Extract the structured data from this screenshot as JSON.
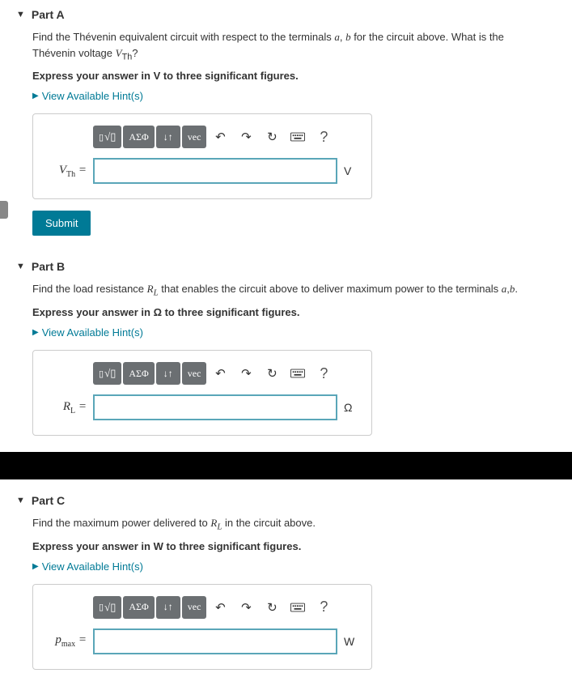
{
  "parts": [
    {
      "title": "Part A",
      "question_html": "Find the Thévenin equivalent circuit with respect to the terminals <span class='ital'>a</span>, <span class='ital'>b</span> for the circuit above. What is the Thévenin voltage <span class='ital'>V</span><sub>Th</sub>?",
      "instruction": "Express your answer in V to three significant figures.",
      "hints_label": "View Available Hint(s)",
      "var_html": "<span class='ital'>V</span><sub>Th</sub> =",
      "unit": "V",
      "submit_label": "Submit",
      "show_submit": true
    },
    {
      "title": "Part B",
      "question_html": "Find the load resistance <span class='ital'>R<sub>L</sub></span> that enables the circuit above to deliver maximum power to the terminals <span class='ital'>a</span>,<span class='ital'>b</span>.",
      "instruction": "Express your answer in Ω to three significant figures.",
      "hints_label": "View Available Hint(s)",
      "var_html": "<span class='ital'>R<sub>L</sub></span> =",
      "unit": "Ω",
      "show_submit": false
    },
    {
      "title": "Part C",
      "question_html": "Find the maximum power delivered to <span class='ital'>R<sub>L</sub></span> in the circuit above.",
      "instruction": "Express your answer in W to three significant figures.",
      "hints_label": "View Available Hint(s)",
      "var_html": "<span class='ital'>p<sub>max</sub></span> =",
      "unit": "W",
      "show_submit": false
    }
  ],
  "toolbar": {
    "templates": "▯√▯",
    "greek": "ΑΣΦ",
    "subscript": "↓↑",
    "vec": "vec",
    "undo_icon": "↶",
    "redo_icon": "↷",
    "reset_icon": "↻",
    "help": "?"
  },
  "colors": {
    "link": "#007a96",
    "tool_bg": "#6b6f72",
    "input_border": "#5aa6b8"
  }
}
